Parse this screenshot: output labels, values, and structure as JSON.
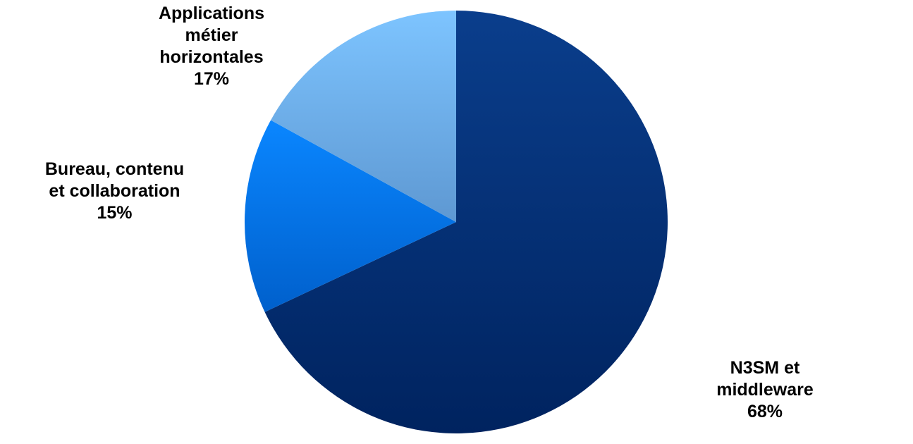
{
  "chart_data": {
    "type": "pie",
    "title": "",
    "slices": [
      {
        "label_lines": [
          "N3SM et",
          "middleware"
        ],
        "value": 68,
        "value_label": "68%",
        "color_light": "#0A3E8C",
        "color_dark": "#00235F"
      },
      {
        "label_lines": [
          "Bureau, contenu",
          "et collaboration"
        ],
        "value": 15,
        "value_label": "15%",
        "color_light": "#0A86FF",
        "color_dark": "#0060CC"
      },
      {
        "label_lines": [
          "Applications",
          "métier",
          "horizontales"
        ],
        "value": 17,
        "value_label": "17%",
        "color_light": "#7DC4FF",
        "color_dark": "#5E98D2"
      }
    ],
    "start_angle_deg": 0,
    "direction": "clockwise",
    "legend": "none",
    "labels_position": "outside"
  }
}
